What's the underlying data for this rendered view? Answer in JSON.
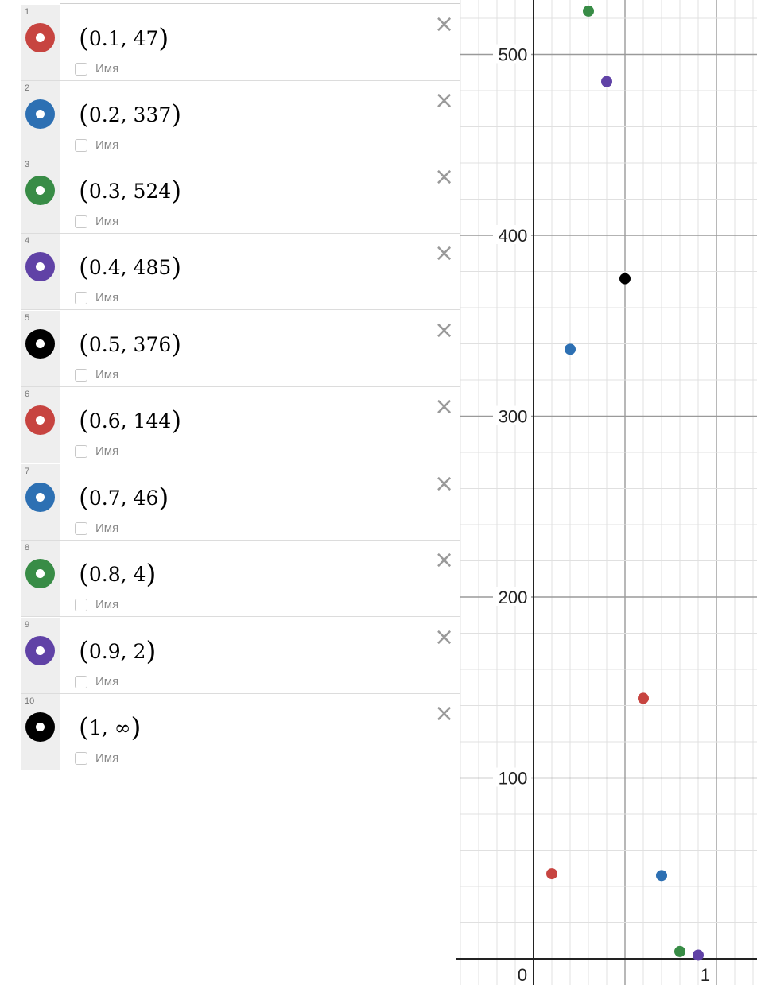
{
  "expressions": [
    {
      "num": "1",
      "x": "0.1",
      "y": "47",
      "color": "#c74440",
      "label_placeholder": "Имя"
    },
    {
      "num": "2",
      "x": "0.2",
      "y": "337",
      "color": "#2d70b3",
      "label_placeholder": "Имя"
    },
    {
      "num": "3",
      "x": "0.3",
      "y": "524",
      "color": "#388c46",
      "label_placeholder": "Имя"
    },
    {
      "num": "4",
      "x": "0.4",
      "y": "485",
      "color": "#6042a6",
      "label_placeholder": "Имя"
    },
    {
      "num": "5",
      "x": "0.5",
      "y": "376",
      "color": "#000000",
      "label_placeholder": "Имя"
    },
    {
      "num": "6",
      "x": "0.6",
      "y": "144",
      "color": "#c74440",
      "label_placeholder": "Имя"
    },
    {
      "num": "7",
      "x": "0.7",
      "y": "46",
      "color": "#2d70b3",
      "label_placeholder": "Имя"
    },
    {
      "num": "8",
      "x": "0.8",
      "y": "4",
      "color": "#388c46",
      "label_placeholder": "Имя"
    },
    {
      "num": "9",
      "x": "0.9",
      "y": "2",
      "color": "#6042a6",
      "label_placeholder": "Имя"
    },
    {
      "num": "10",
      "x": "1",
      "y": "∞",
      "color": "#000000",
      "label_placeholder": "Имя"
    }
  ],
  "delete_icon": "×",
  "graph": {
    "x_range": [
      -0.5,
      1.1
    ],
    "y_range": [
      -10,
      530
    ],
    "x_tick_labels": [
      {
        "value": 0,
        "text": "0"
      },
      {
        "value": 1,
        "text": "1"
      }
    ],
    "y_tick_labels": [
      {
        "value": 100,
        "text": "100"
      },
      {
        "value": 200,
        "text": "200"
      },
      {
        "value": 300,
        "text": "300"
      },
      {
        "value": 400,
        "text": "400"
      },
      {
        "value": 500,
        "text": "500"
      }
    ],
    "grid": true,
    "points": [
      {
        "x": 0.1,
        "y": 47,
        "color": "#c74440"
      },
      {
        "x": 0.2,
        "y": 337,
        "color": "#2d70b3"
      },
      {
        "x": 0.3,
        "y": 524,
        "color": "#388c46"
      },
      {
        "x": 0.4,
        "y": 485,
        "color": "#6042a6"
      },
      {
        "x": 0.5,
        "y": 376,
        "color": "#000000"
      },
      {
        "x": 0.6,
        "y": 144,
        "color": "#c74440"
      },
      {
        "x": 0.7,
        "y": 46,
        "color": "#2d70b3"
      },
      {
        "x": 0.8,
        "y": 4,
        "color": "#388c46"
      },
      {
        "x": 0.9,
        "y": 2,
        "color": "#6042a6"
      }
    ]
  }
}
